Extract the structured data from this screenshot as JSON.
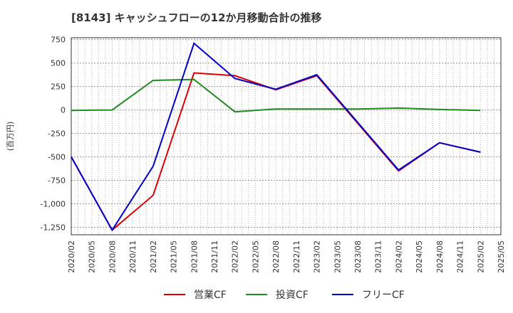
{
  "chart_data": {
    "type": "line",
    "title": "[8143]  キャッシュフローの12か月移動合計の推移",
    "xlabel": "",
    "ylabel": "(百万円)",
    "ylim": [
      -1330,
      770
    ],
    "yticks": [
      750,
      500,
      250,
      0,
      -250,
      -500,
      -750,
      -1000,
      -1250
    ],
    "ytick_labels": [
      "750",
      "500",
      "250",
      "0",
      "-250",
      "-500",
      "-750",
      "-1,000",
      "-1,250"
    ],
    "x_start": "2020/02",
    "x_end": "2025/05",
    "xtick_labels": [
      "2020/02",
      "2020/05",
      "2020/08",
      "2020/11",
      "2021/02",
      "2021/05",
      "2021/08",
      "2021/11",
      "2022/02",
      "2022/05",
      "2022/08",
      "2022/11",
      "2023/02",
      "2023/05",
      "2023/08",
      "2023/11",
      "2024/02",
      "2024/05",
      "2024/08",
      "2024/11",
      "2025/02",
      "2025/05"
    ],
    "grid": true,
    "legend": "bottom",
    "series": [
      {
        "name": "営業CF",
        "color": "#dd0000",
        "points": [
          {
            "x": "2020/02",
            "y": -500
          },
          {
            "x": "2020/08",
            "y": -1280
          },
          {
            "x": "2021/02",
            "y": -910
          },
          {
            "x": "2021/08",
            "y": 395
          },
          {
            "x": "2022/02",
            "y": 365
          },
          {
            "x": "2022/08",
            "y": 215
          },
          {
            "x": "2023/02",
            "y": 365
          },
          {
            "x": "2024/02",
            "y": -650
          },
          {
            "x": "2024/08",
            "y": -350
          },
          {
            "x": "2025/02",
            "y": -450
          }
        ]
      },
      {
        "name": "投資CF",
        "color": "#228b22",
        "points": [
          {
            "x": "2020/02",
            "y": -5
          },
          {
            "x": "2020/08",
            "y": 0
          },
          {
            "x": "2021/02",
            "y": 315
          },
          {
            "x": "2021/08",
            "y": 325
          },
          {
            "x": "2022/02",
            "y": -20
          },
          {
            "x": "2022/08",
            "y": 10
          },
          {
            "x": "2023/02",
            "y": 10
          },
          {
            "x": "2023/08",
            "y": 10
          },
          {
            "x": "2024/02",
            "y": 20
          },
          {
            "x": "2024/08",
            "y": 5
          },
          {
            "x": "2025/02",
            "y": -5
          }
        ]
      },
      {
        "name": "フリーCF",
        "color": "#0000cc",
        "points": [
          {
            "x": "2020/02",
            "y": -500
          },
          {
            "x": "2020/08",
            "y": -1280
          },
          {
            "x": "2021/02",
            "y": -600
          },
          {
            "x": "2021/08",
            "y": 710
          },
          {
            "x": "2022/02",
            "y": 335
          },
          {
            "x": "2022/08",
            "y": 220
          },
          {
            "x": "2023/02",
            "y": 375
          },
          {
            "x": "2024/02",
            "y": -640
          },
          {
            "x": "2024/08",
            "y": -350
          },
          {
            "x": "2025/02",
            "y": -450
          }
        ]
      }
    ]
  }
}
